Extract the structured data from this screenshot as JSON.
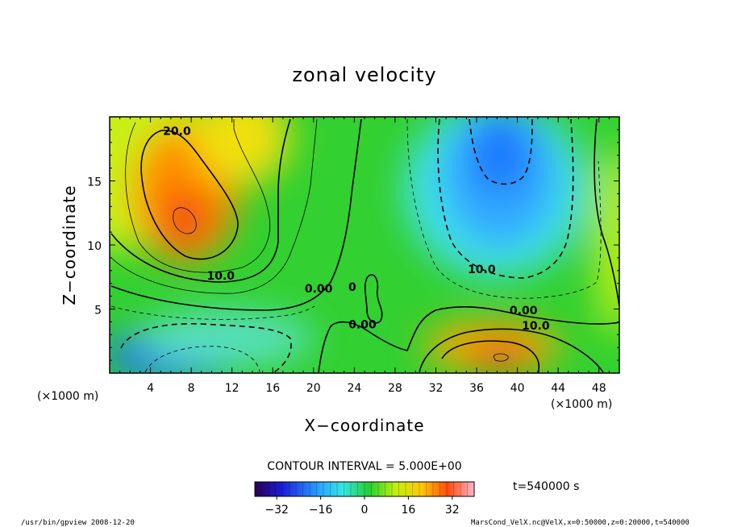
{
  "chart_data": {
    "type": "heatmap",
    "title": "zonal velocity",
    "xlabel": "X−coordinate",
    "ylabel": "Z−coordinate",
    "x_unit": "(×1000 m)",
    "y_unit": "(×1000 m)",
    "xlim": [
      0,
      50
    ],
    "ylim": [
      0,
      20
    ],
    "xticks": [
      "4",
      "8",
      "12",
      "16",
      "20",
      "24",
      "28",
      "32",
      "36",
      "40",
      "44",
      "48"
    ],
    "yticks": [
      "5",
      "10",
      "15"
    ],
    "contour_interval_text": "CONTOUR INTERVAL = 5.000E+00",
    "contour_labels": [
      {
        "text": "20.0",
        "x": 6.6,
        "y": 18.6
      },
      {
        "text": "10.0",
        "x": 10.9,
        "y": 7.3
      },
      {
        "text": "0.00",
        "x": 20.5,
        "y": 6.3
      },
      {
        "text": "0",
        "x": 23.8,
        "y": 6.4
      },
      {
        "text": "0.00",
        "x": 24.8,
        "y": 3.5
      },
      {
        "text": "10.0",
        "x": 36.5,
        "y": 7.8
      },
      {
        "text": "0.00",
        "x": 40.6,
        "y": 4.6
      },
      {
        "text": "10.0",
        "x": 41.8,
        "y": 3.4
      }
    ],
    "features": [
      {
        "name": "positive jet upper-left",
        "x": 7.5,
        "y": 12,
        "value": 28
      },
      {
        "name": "negative core upper-right",
        "x": 38,
        "y": 12,
        "value": -22
      },
      {
        "name": "negative lower-left",
        "x": 7,
        "y": 1.2,
        "value": -20
      },
      {
        "name": "positive lower-right",
        "x": 38.5,
        "y": 1.3,
        "value": 28
      }
    ],
    "colorbar": {
      "ticks": [
        "−32",
        "−16",
        "0",
        "16",
        "32"
      ],
      "range": [
        -40,
        40
      ]
    },
    "time_label": "t=540000 s"
  },
  "footer": {
    "left": "/usr/bin/gpview  2008-12-20",
    "right": "MarsCond_VelX.nc@VelX,x=0:50000,z=0:20000,t=540000"
  },
  "colors": {
    "frame": "#000000",
    "background": "#ffffff"
  }
}
